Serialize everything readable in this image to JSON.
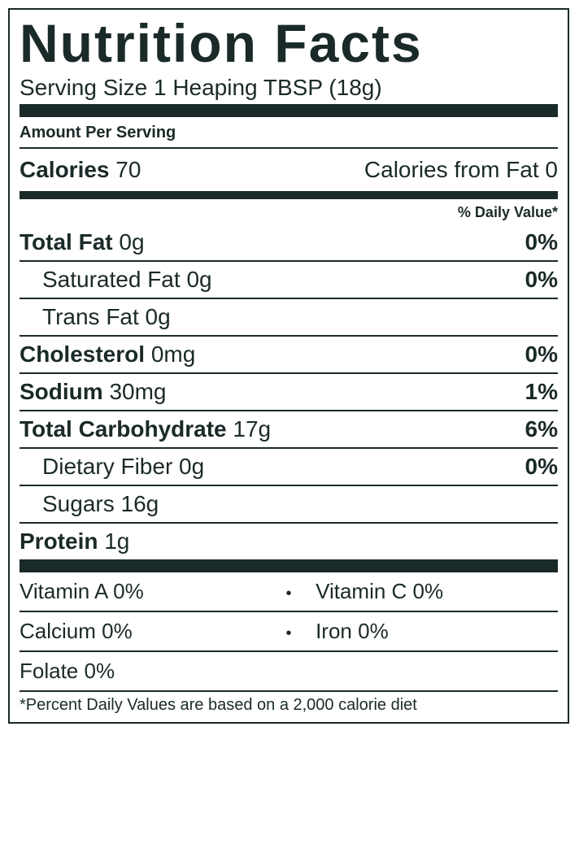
{
  "title": "Nutrition Facts",
  "serving": "Serving Size 1 Heaping TBSP (18g)",
  "amount_per": "Amount Per Serving",
  "calories_label": "Calories",
  "calories_value": "70",
  "calories_from_fat_label": "Calories from Fat",
  "calories_from_fat_value": "0",
  "dv_header": "% Daily Value*",
  "nutrients": [
    {
      "name": "Total Fat",
      "value": "0g",
      "pct": "0%",
      "bold": true,
      "indent": false
    },
    {
      "name": "Saturated Fat",
      "value": "0g",
      "pct": "0%",
      "bold": false,
      "indent": true
    },
    {
      "name": "Trans Fat",
      "value": "0g",
      "pct": "",
      "bold": false,
      "indent": true
    },
    {
      "name": "Cholesterol",
      "value": "0mg",
      "pct": "0%",
      "bold": true,
      "indent": false
    },
    {
      "name": "Sodium",
      "value": "30mg",
      "pct": "1%",
      "bold": true,
      "indent": false
    },
    {
      "name": "Total Carbohydrate",
      "value": "17g",
      "pct": "6%",
      "bold": true,
      "indent": false
    },
    {
      "name": "Dietary Fiber",
      "value": "0g",
      "pct": "0%",
      "bold": false,
      "indent": true
    },
    {
      "name": "Sugars",
      "value": "16g",
      "pct": "",
      "bold": false,
      "indent": true
    },
    {
      "name": "Protein",
      "value": "1g",
      "pct": "",
      "bold": true,
      "indent": false
    }
  ],
  "vitamins": [
    {
      "left": "Vitamin A 0%",
      "right": "Vitamin C 0%"
    },
    {
      "left": "Calcium 0%",
      "right": "Iron 0%"
    },
    {
      "left": "Folate 0%",
      "right": ""
    }
  ],
  "footnote": "*Percent Daily Values are based on a 2,000 calorie diet"
}
